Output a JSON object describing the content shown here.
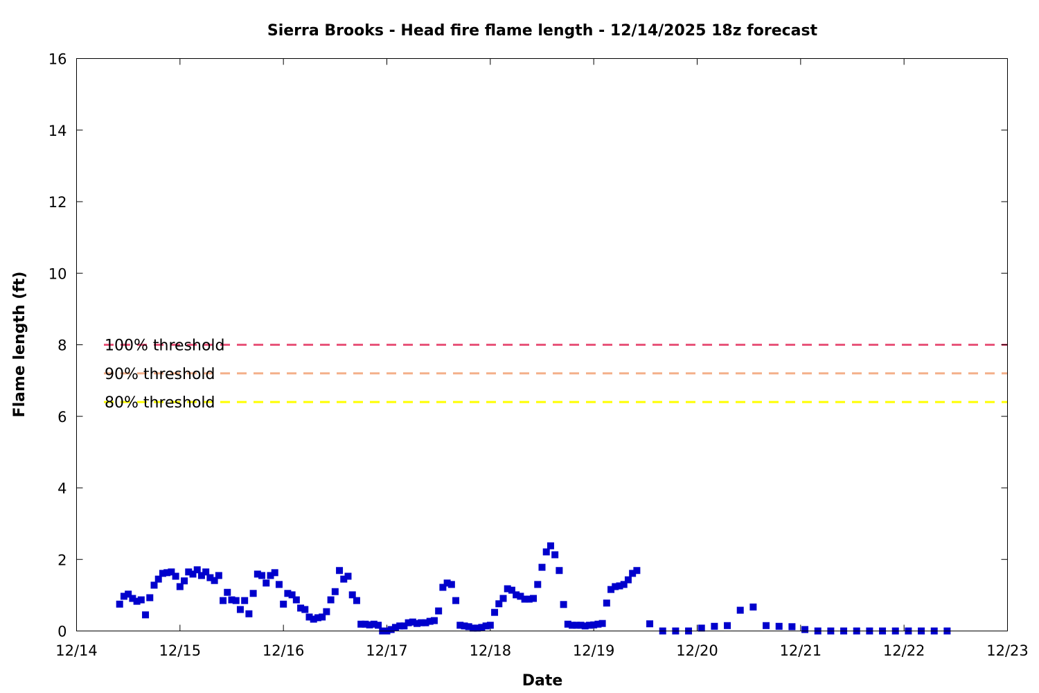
{
  "chart_data": {
    "type": "scatter",
    "title": "Sierra Brooks - Head fire flame length - 12/14/2025 18z forecast",
    "xlabel": "Date",
    "ylabel": "Flame length (ft)",
    "xlim_hours_since_12_14_00z": [
      0,
      216
    ],
    "ylim": [
      0,
      16
    ],
    "x_tick_labels": [
      "12/14",
      "12/15",
      "12/16",
      "12/17",
      "12/18",
      "12/19",
      "12/20",
      "12/21",
      "12/22",
      "12/23"
    ],
    "y_ticks": [
      0,
      2,
      4,
      6,
      8,
      10,
      12,
      14,
      16
    ],
    "grid": false,
    "thresholds": [
      {
        "label": "100% threshold",
        "value": 8.0,
        "color": "#e8557a"
      },
      {
        "label": "90% threshold",
        "value": 7.2,
        "color": "#f4b08a"
      },
      {
        "label": "80% threshold",
        "value": 6.4,
        "color": "#ffff00"
      }
    ],
    "series": [
      {
        "name": "flame length",
        "color": "#0000cc",
        "segments": [
          {
            "start_hour": 10,
            "step_hours": 1,
            "values": [
              0.75,
              0.97,
              1.03,
              0.91,
              0.83,
              0.87,
              0.45,
              0.93,
              1.28,
              1.45,
              1.61,
              1.63,
              1.65,
              1.53,
              1.24,
              1.4,
              1.65,
              1.59,
              1.71,
              1.55,
              1.65,
              1.49,
              1.41,
              1.55,
              0.85,
              1.08,
              0.87,
              0.85,
              0.6,
              0.85,
              0.48,
              1.05,
              1.59,
              1.55,
              1.34,
              1.55,
              1.63,
              1.3,
              0.75,
              1.05,
              1.01,
              0.87,
              0.64,
              0.6,
              0.39,
              0.33,
              0.37,
              0.39,
              0.54,
              0.87,
              1.1,
              1.69,
              1.45,
              1.53,
              1.01,
              0.85,
              0.19,
              0.19,
              0.17,
              0.19,
              0.16,
              0.0,
              0.0,
              0.04,
              0.1,
              0.14,
              0.14,
              0.23,
              0.25,
              0.21,
              0.23,
              0.23,
              0.27,
              0.29,
              0.56,
              1.22,
              1.34,
              1.3,
              0.85,
              0.16,
              0.14,
              0.12,
              0.08,
              0.08,
              0.1,
              0.14,
              0.16,
              0.52,
              0.76,
              0.91,
              1.18,
              1.14,
              1.01,
              0.97,
              0.89,
              0.89,
              0.91,
              1.3,
              1.78,
              2.21,
              2.38,
              2.13,
              1.69,
              0.74,
              0.19,
              0.16,
              0.16,
              0.16,
              0.14,
              0.16,
              0.17,
              0.19,
              0.21,
              0.78,
              1.16,
              1.24,
              1.26,
              1.3,
              1.43,
              1.61,
              1.69
            ]
          },
          {
            "start_hour": 133,
            "step_hours": 3,
            "values": [
              0.2,
              0.0,
              0.0,
              0.0,
              0.08,
              0.13,
              0.15,
              0.58,
              0.67,
              0.15,
              0.13,
              0.12,
              0.04,
              0.0,
              0.0,
              0.0,
              0.0,
              0.0,
              0.0,
              0.0,
              0.0,
              0.0,
              0.0,
              0.0
            ]
          }
        ]
      }
    ]
  }
}
